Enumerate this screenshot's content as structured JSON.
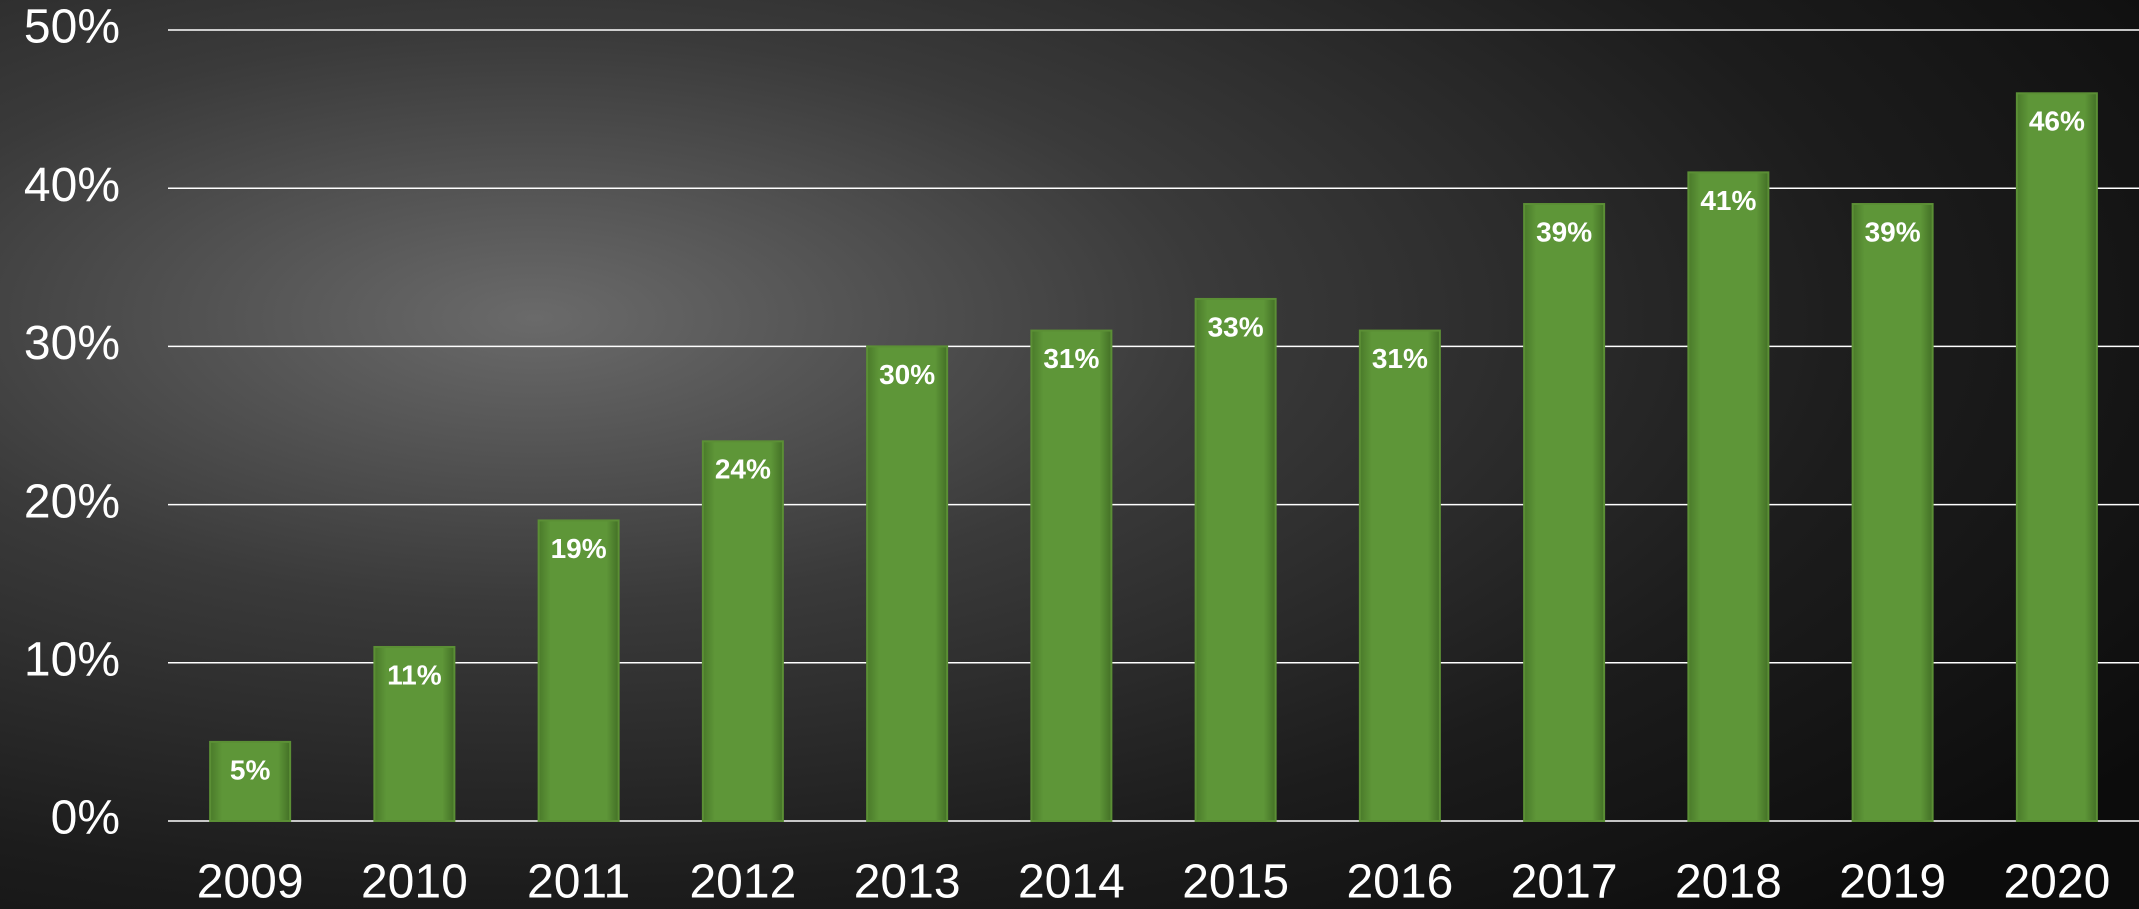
{
  "chart_data": {
    "type": "bar",
    "categories": [
      "2009",
      "2010",
      "2011",
      "2012",
      "2013",
      "2014",
      "2015",
      "2016",
      "2017",
      "2018",
      "2019",
      "2020"
    ],
    "values": [
      5,
      11,
      19,
      24,
      30,
      31,
      33,
      31,
      39,
      41,
      39,
      46
    ],
    "value_labels": [
      "5%",
      "11%",
      "19%",
      "24%",
      "30%",
      "31%",
      "33%",
      "31%",
      "39%",
      "41%",
      "39%",
      "46%"
    ],
    "color": "#5b8f35",
    "ylim": [
      0,
      50
    ],
    "yticks": [
      {
        "value": 0,
        "label": "0%"
      },
      {
        "value": 10,
        "label": "10%"
      },
      {
        "value": 20,
        "label": "20%"
      },
      {
        "value": 30,
        "label": "30%"
      },
      {
        "value": 40,
        "label": "40%"
      },
      {
        "value": 50,
        "label": "50%"
      }
    ],
    "grid": true
  }
}
